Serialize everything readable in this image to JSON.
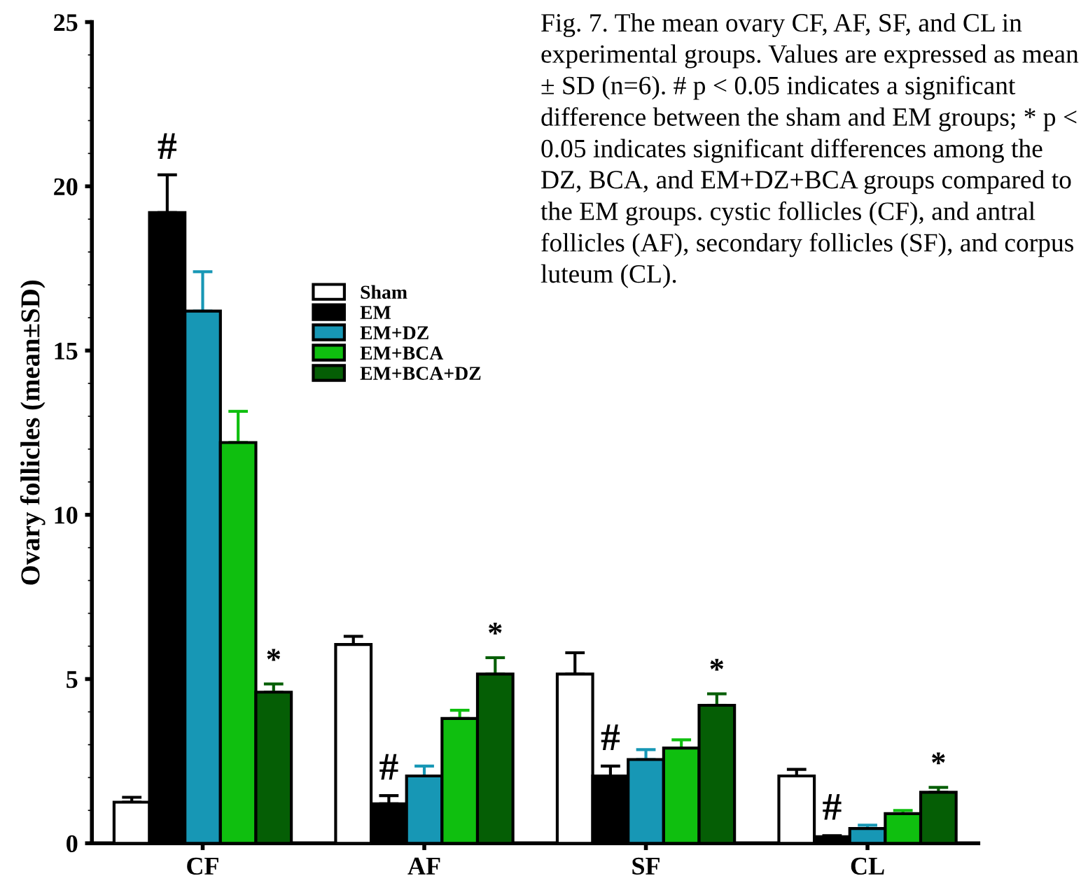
{
  "chart_data": {
    "type": "bar",
    "ylabel": "Ovary follicles (mean±SD)",
    "categories": [
      "CF",
      "AF",
      "SF",
      "CL"
    ],
    "series": [
      {
        "name": "Sham",
        "color": "#ffffff",
        "values": [
          1.25,
          6.05,
          5.15,
          2.05
        ],
        "errors": [
          0.15,
          0.25,
          0.65,
          0.2
        ]
      },
      {
        "name": "EM",
        "color": "#000000",
        "values": [
          19.2,
          1.2,
          2.05,
          0.2
        ],
        "errors": [
          1.15,
          0.25,
          0.3,
          0.03
        ]
      },
      {
        "name": "EM+DZ",
        "color": "#1797b5",
        "values": [
          16.2,
          2.05,
          2.55,
          0.45
        ],
        "errors": [
          1.2,
          0.3,
          0.3,
          0.1
        ]
      },
      {
        "name": "EM+BCA",
        "color": "#0fbf0f",
        "values": [
          12.2,
          3.8,
          2.9,
          0.9
        ],
        "errors": [
          0.95,
          0.25,
          0.25,
          0.1
        ]
      },
      {
        "name": "EM+BCA+DZ",
        "color": "#055e05",
        "values": [
          4.6,
          5.15,
          4.2,
          1.55
        ],
        "errors": [
          0.25,
          0.5,
          0.35,
          0.15
        ]
      }
    ],
    "ylim": [
      0,
      25
    ],
    "yticks": [
      0,
      5,
      10,
      15,
      20,
      25
    ],
    "grid": false,
    "legend": "top",
    "annotations": [
      "#",
      "*",
      "#",
      "*",
      "#",
      "*",
      "#",
      "*",
      "Fig. 7. The mean ovary CF, AF, SF, and CL in experimental groups. Values are expressed as mean ± SD (n=6). # p < 0.05 indicates a significant difference between the sham and EM groups; * p < 0.05 indicates significant differences among the DZ, BCA, and EM+DZ+BCA groups compared to the EM groups. cystic follicles (CF), and antral follicles (AF), secondary follicles (SF), and corpus luteum (CL)."
    ]
  }
}
